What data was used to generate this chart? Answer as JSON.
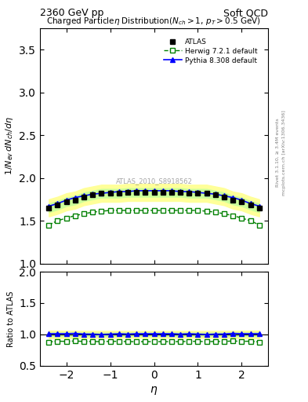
{
  "title_left": "2360 GeV pp",
  "title_right": "Soft QCD",
  "xlabel": "η",
  "ylabel_main": "1/N_{ev} dN_{ch}/dη",
  "ylabel_ratio": "Ratio to ATLAS",
  "watermark": "ATLAS_2010_S8918562",
  "right_label_top": "Rivet 3.1.10, ≥ 3.4M events",
  "right_label_bottom": "mcplots.cern.ch [arXiv:1306.3436]",
  "ylim_main": [
    1.0,
    3.75
  ],
  "ylim_ratio": [
    0.5,
    2.0
  ],
  "yticks_main": [
    1.0,
    1.5,
    2.0,
    2.5,
    3.0,
    3.5
  ],
  "yticks_ratio": [
    0.5,
    1.0,
    1.5,
    2.0
  ],
  "xlim": [
    -2.6,
    2.6
  ],
  "xticks": [
    -2,
    -1,
    0,
    1,
    2
  ],
  "eta_atlas": [
    -2.4,
    -2.2,
    -2.0,
    -1.8,
    -1.6,
    -1.4,
    -1.2,
    -1.0,
    -0.8,
    -0.6,
    -0.4,
    -0.2,
    0.0,
    0.2,
    0.4,
    0.6,
    0.8,
    1.0,
    1.2,
    1.4,
    1.6,
    1.8,
    2.0,
    2.2,
    2.4
  ],
  "atlas_vals": [
    1.65,
    1.68,
    1.72,
    1.74,
    1.78,
    1.8,
    1.82,
    1.82,
    1.82,
    1.83,
    1.83,
    1.83,
    1.83,
    1.83,
    1.83,
    1.83,
    1.82,
    1.82,
    1.82,
    1.8,
    1.78,
    1.74,
    1.72,
    1.68,
    1.65
  ],
  "atlas_err": [
    0.05,
    0.05,
    0.05,
    0.05,
    0.05,
    0.05,
    0.05,
    0.05,
    0.05,
    0.05,
    0.05,
    0.05,
    0.05,
    0.05,
    0.05,
    0.05,
    0.05,
    0.05,
    0.05,
    0.05,
    0.05,
    0.05,
    0.05,
    0.05,
    0.05
  ],
  "eta_herwig": [
    -2.4,
    -2.2,
    -2.0,
    -1.8,
    -1.6,
    -1.4,
    -1.2,
    -1.0,
    -0.8,
    -0.6,
    -0.4,
    -0.2,
    0.0,
    0.2,
    0.4,
    0.6,
    0.8,
    1.0,
    1.2,
    1.4,
    1.6,
    1.8,
    2.0,
    2.2,
    2.4
  ],
  "herwig_vals": [
    1.45,
    1.5,
    1.53,
    1.56,
    1.58,
    1.6,
    1.61,
    1.62,
    1.62,
    1.62,
    1.62,
    1.62,
    1.62,
    1.62,
    1.62,
    1.62,
    1.62,
    1.62,
    1.61,
    1.6,
    1.58,
    1.56,
    1.53,
    1.5,
    1.45
  ],
  "eta_pythia": [
    -2.4,
    -2.2,
    -2.0,
    -1.8,
    -1.6,
    -1.4,
    -1.2,
    -1.0,
    -0.8,
    -0.6,
    -0.4,
    -0.2,
    0.0,
    0.2,
    0.4,
    0.6,
    0.8,
    1.0,
    1.2,
    1.4,
    1.6,
    1.8,
    2.0,
    2.2,
    2.4
  ],
  "pythia_vals": [
    1.67,
    1.7,
    1.74,
    1.77,
    1.79,
    1.81,
    1.82,
    1.83,
    1.84,
    1.84,
    1.85,
    1.85,
    1.85,
    1.85,
    1.85,
    1.84,
    1.84,
    1.83,
    1.82,
    1.81,
    1.79,
    1.77,
    1.74,
    1.7,
    1.67
  ],
  "atlas_color": "black",
  "herwig_color": "#008000",
  "pythia_color": "blue",
  "band_color_inner": "#ccff99",
  "band_color_outer": "#ffff99",
  "legend_entries": [
    "ATLAS",
    "Herwig 7.2.1 default",
    "Pythia 8.308 default"
  ]
}
